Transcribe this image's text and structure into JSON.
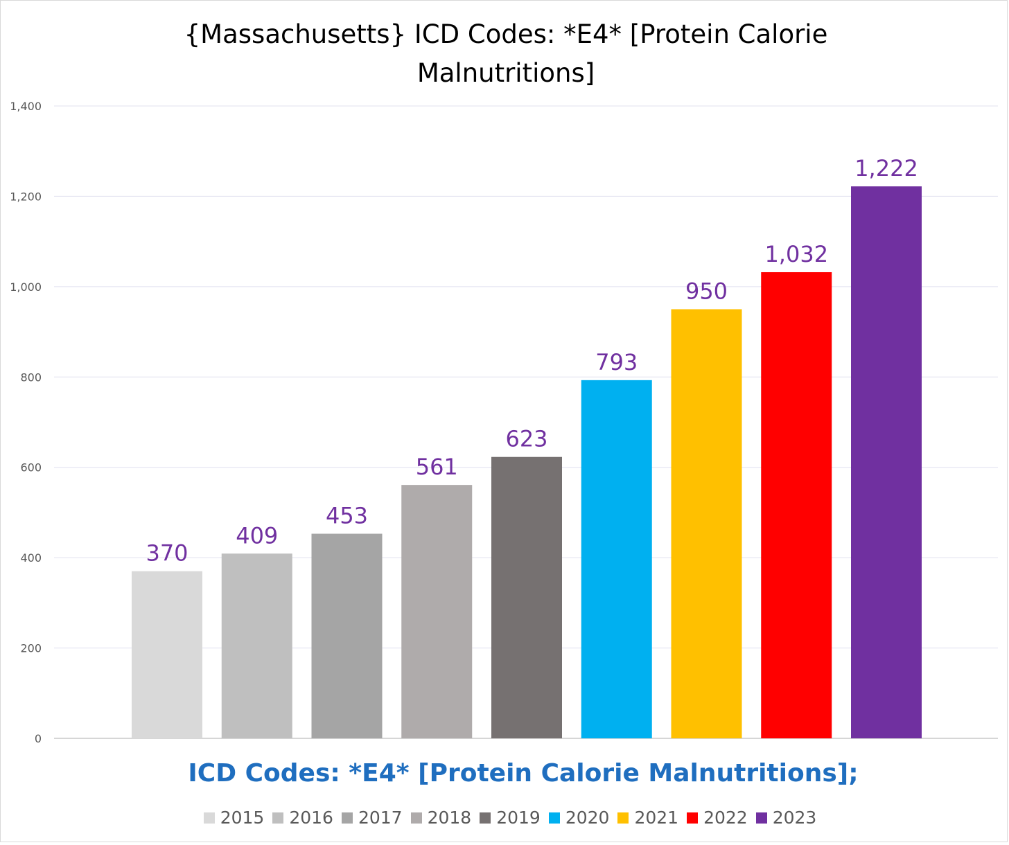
{
  "chart_data": {
    "type": "bar",
    "title": "{Massachusetts}  ICD Codes: *E4* [Protein Calorie Malnutritions]",
    "title_lines": [
      "{Massachusetts}  ICD Codes: *E4* [Protein Calorie",
      "Malnutritions]"
    ],
    "subtitle": "ICD Codes: *E4* [Protein Calorie Malnutritions];",
    "categories": [
      "2015",
      "2016",
      "2017",
      "2018",
      "2019",
      "2020",
      "2021",
      "2022",
      "2023"
    ],
    "values": [
      370,
      409,
      453,
      561,
      623,
      793,
      950,
      1032,
      1222
    ],
    "value_labels": [
      "370",
      "409",
      "453",
      "561",
      "623",
      "793",
      "950",
      "1,032",
      "1,222"
    ],
    "colors": [
      "#d9d9d9",
      "#bfbfbf",
      "#a5a5a5",
      "#afabab",
      "#767171",
      "#00b0f0",
      "#ffc000",
      "#ff0000",
      "#7030a0"
    ],
    "label_color": "#7030a0",
    "ylim": [
      0,
      1400
    ],
    "yticks": [
      0,
      200,
      400,
      600,
      800,
      1000,
      1200,
      1400
    ],
    "ytick_labels": [
      "0",
      "200",
      "400",
      "600",
      "800",
      "1,000",
      "1,200",
      "1,400"
    ],
    "grid": true,
    "legend_position": "bottom",
    "xlabel": "",
    "ylabel": ""
  }
}
